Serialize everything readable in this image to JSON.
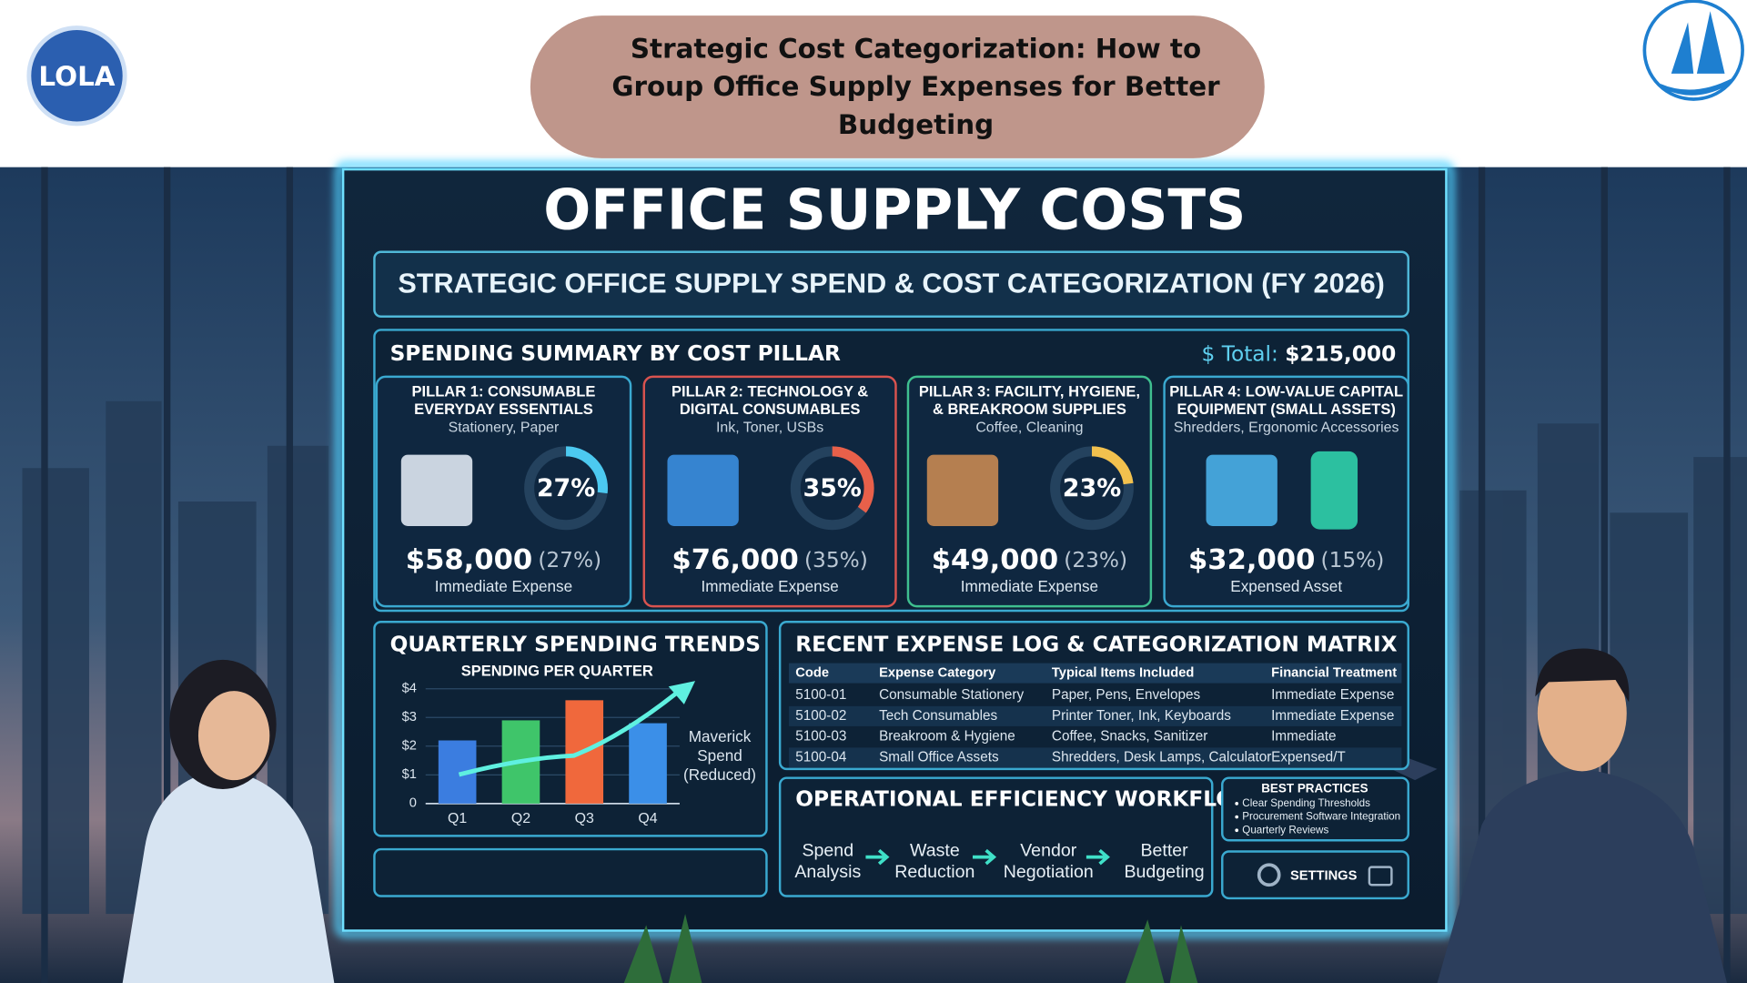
{
  "header": {
    "logo_left": "LOLA",
    "title_lines": [
      "Strategic Cost Categorization: How to",
      "Group Office Supply Expenses for Better",
      "Budgeting"
    ]
  },
  "screen": {
    "title": "OFFICE SUPPLY COSTS",
    "subtitle": "STRATEGIC OFFICE SUPPLY SPEND & COST CATEGORIZATION (FY 2026)"
  },
  "summary": {
    "title": "SPENDING SUMMARY BY COST PILLAR",
    "total_label": "$ Total:",
    "total": "$215,000",
    "pillars": [
      {
        "name_lines": [
          "PILLAR 1: CONSUMABLE",
          "EVERYDAY ESSENTIALS"
        ],
        "examples": "Stationery, Paper",
        "percent": 27,
        "percent_label": "27%",
        "ring_color": "#4cc9f0",
        "amount": "$58,000",
        "share": "(27%)",
        "treatment": "Immediate Expense",
        "color": "#3aa9d0"
      },
      {
        "name_lines": [
          "PILLAR 2: TECHNOLOGY &",
          "DIGITAL CONSUMABLES"
        ],
        "examples": "Ink, Toner, USBs",
        "percent": 35,
        "percent_label": "35%",
        "ring_color": "#e8604a",
        "amount": "$76,000",
        "share": "(35%)",
        "treatment": "Immediate Expense",
        "color": "#d9534f"
      },
      {
        "name_lines": [
          "PILLAR 3: FACILITY, HYGIENE,",
          "& BREAKROOM SUPPLIES"
        ],
        "examples": "Coffee, Cleaning",
        "percent": 23,
        "percent_label": "23%",
        "ring_color": "#f2c14e",
        "amount": "$49,000",
        "share": "(23%)",
        "treatment": "Immediate Expense",
        "color": "#3fbf8f"
      },
      {
        "name_lines": [
          "PILLAR 4: LOW-VALUE CAPITAL",
          "EQUIPMENT (SMALL ASSETS)"
        ],
        "examples": "Shredders, Ergonomic Accessories",
        "amount": "$32,000",
        "share": "(15%)",
        "treatment": "Expensed Asset",
        "color": "#3aa9d0"
      }
    ]
  },
  "chart_data": {
    "type": "bar",
    "heading": "QUARTERLY SPENDING TRENDS",
    "title": "SPENDING PER QUARTER",
    "categories": [
      "Q1",
      "Q2",
      "Q3",
      "Q4"
    ],
    "values": [
      2.2,
      2.9,
      3.6,
      2.8
    ],
    "colors": [
      "#3b7de0",
      "#3fc56a",
      "#f0683c",
      "#3b8fe8"
    ],
    "ylim": [
      0,
      4
    ],
    "yticks": [
      0,
      {
        "value": 1,
        "label": "$1"
      },
      {
        "value": 2,
        "label": "$2"
      },
      {
        "value": 3,
        "label": "$3"
      },
      {
        "value": 4,
        "label": "$4"
      }
    ],
    "annotation_lines": [
      "Maverick",
      "Spend",
      "(Reduced)"
    ]
  },
  "table": {
    "title": "RECENT EXPENSE LOG & CATEGORIZATION MATRIX",
    "columns": [
      "Code",
      "Expense Category",
      "Typical Items Included",
      "Financial Treatment"
    ],
    "rows": [
      [
        "5100-01",
        "Consumable Stationery",
        "Paper, Pens, Envelopes",
        "Immediate Expense"
      ],
      [
        "5100-02",
        "Tech Consumables",
        "Printer Toner, Ink, Keyboards",
        "Immediate Expense"
      ],
      [
        "5100-03",
        "Breakroom & Hygiene",
        "Coffee, Snacks, Sanitizer",
        "Immediate"
      ],
      [
        "5100-04",
        "Small Office Assets",
        "Shredders, Desk Lamps, Calculator",
        "Expensed/T"
      ]
    ]
  },
  "workflow": {
    "title": "OPERATIONAL EFFICIENCY WORKFLOW",
    "steps": [
      [
        "Spend",
        "Analysis"
      ],
      [
        "Waste",
        "Reduction"
      ],
      [
        "Vendor",
        "Negotiation"
      ],
      [
        "Better",
        "Budgeting"
      ]
    ]
  },
  "best_practices": {
    "title": "BEST PRACTICES",
    "items": [
      "Clear Spending Thresholds",
      "Procurement Software Integration",
      "Quarterly Reviews"
    ]
  },
  "settings": {
    "label": "SETTINGS"
  }
}
